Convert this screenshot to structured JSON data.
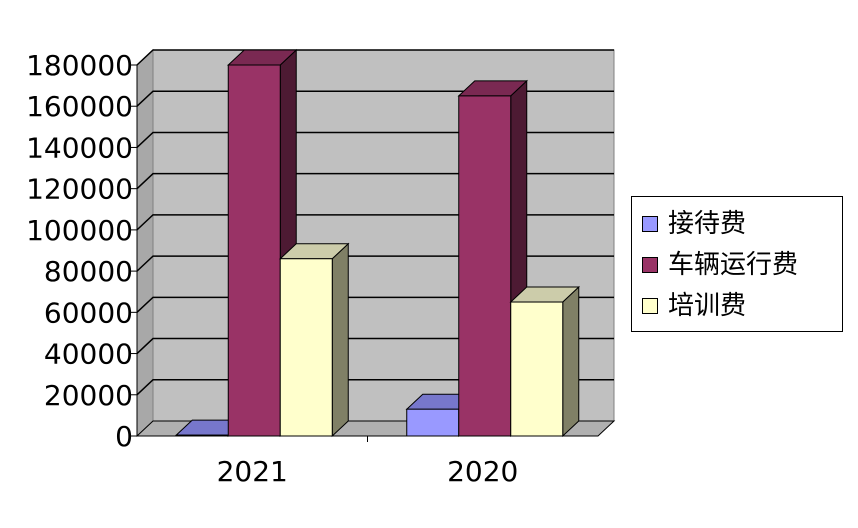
{
  "chart_data": {
    "type": "bar",
    "categories": [
      "2021",
      "2020"
    ],
    "series": [
      {
        "name": "接待费",
        "values": [
          400,
          13000
        ],
        "color": "#9999ff",
        "side_color": "#4d4d80",
        "top_color": "#7777cc"
      },
      {
        "name": "车辆运行费",
        "values": [
          180000,
          165000
        ],
        "color": "#993366",
        "side_color": "#4d1a33",
        "top_color": "#7a2952"
      },
      {
        "name": "培训费",
        "values": [
          86000,
          65000
        ],
        "color": "#ffffcc",
        "side_color": "#808066",
        "top_color": "#ccccaa"
      }
    ],
    "ylim": [
      0,
      180000
    ],
    "yticks": [
      "0",
      "20000",
      "40000",
      "60000",
      "80000",
      "100000",
      "120000",
      "140000",
      "160000",
      "180000"
    ],
    "grid": true,
    "legend_position": "right",
    "title": "",
    "xlabel": "",
    "ylabel": ""
  }
}
